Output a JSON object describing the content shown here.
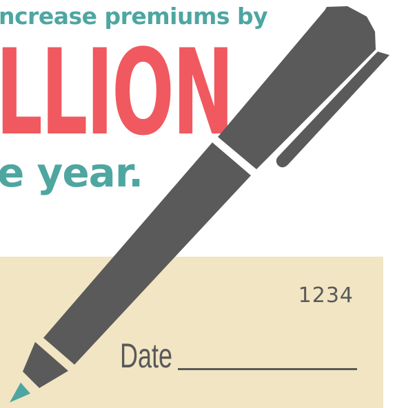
{
  "headline": {
    "top_line": "ncrease premiums by",
    "big_word": "LLION",
    "bottom_line": "e year."
  },
  "check": {
    "number": "1234",
    "date_label": "Date"
  },
  "pen": {
    "icon": "pen-icon"
  },
  "colors": {
    "teal": "#4ea6a1",
    "coral": "#f0595f",
    "pen_gray": "#5a5a5a",
    "check_beige": "#f1e5c3",
    "check_text": "#595959",
    "background": "#ffffff"
  }
}
